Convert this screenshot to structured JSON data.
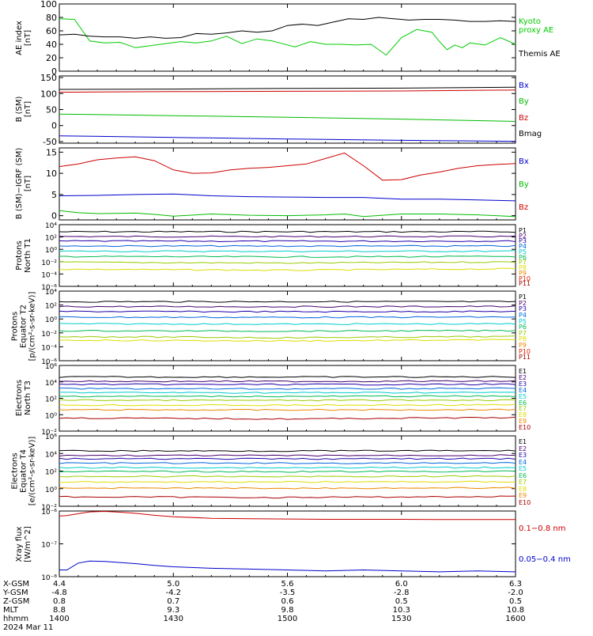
{
  "x_axis": {
    "ticks": [
      "14:00",
      "14:30",
      "15:00",
      "15:30",
      "16:00"
    ],
    "rows": [
      {
        "label": "X-GSM",
        "values": [
          "4.4",
          "5.0",
          "5.6",
          "6.0",
          "6.3"
        ]
      },
      {
        "label": "Y-GSM",
        "values": [
          "-4.8",
          "-4.2",
          "-3.5",
          "-2.8",
          "-2.0"
        ]
      },
      {
        "label": "Z-GSM",
        "values": [
          "0.8",
          "0.7",
          "0.6",
          "0.5",
          "0.5"
        ]
      },
      {
        "label": "MLT",
        "values": [
          "8.8",
          "9.3",
          "9.8",
          "10.3",
          "10.8"
        ]
      },
      {
        "label": "hhmm",
        "values": [
          "1400",
          "1430",
          "1500",
          "1530",
          "1600"
        ]
      }
    ],
    "date": "2024 Mar 11"
  },
  "chart_data": [
    {
      "type": "line",
      "ylabel": "AE index\n[nT]",
      "ylim": [
        0,
        100
      ],
      "yticks": [
        "0",
        "20",
        "40",
        "60",
        "80",
        "100"
      ],
      "x_range": [
        0,
        120
      ],
      "series": [
        {
          "name": "Kyoto\nproxy AE",
          "color": "#00cc00",
          "x": [
            0,
            4,
            8,
            12,
            16,
            20,
            24,
            28,
            32,
            36,
            40,
            44,
            48,
            52,
            56,
            58,
            62,
            66,
            70,
            74,
            78,
            82,
            86,
            90,
            94,
            98,
            100,
            102,
            104,
            106,
            108,
            112,
            116,
            120
          ],
          "values": [
            78,
            77,
            45,
            42,
            43,
            35,
            38,
            41,
            44,
            42,
            45,
            52,
            41,
            48,
            45,
            42,
            36,
            44,
            40,
            40,
            39,
            40,
            24,
            50,
            62,
            58,
            44,
            32,
            39,
            35,
            42,
            39,
            50,
            40
          ]
        },
        {
          "name": "Themis AE",
          "color": "#000000",
          "x": [
            0,
            4,
            8,
            12,
            16,
            20,
            24,
            28,
            32,
            36,
            40,
            44,
            48,
            52,
            56,
            60,
            64,
            68,
            72,
            76,
            80,
            84,
            88,
            92,
            96,
            100,
            104,
            108,
            112,
            116,
            120
          ],
          "values": [
            54,
            55,
            52,
            51,
            51,
            49,
            51,
            49,
            50,
            56,
            55,
            57,
            60,
            58,
            60,
            68,
            70,
            68,
            73,
            78,
            77,
            80,
            78,
            76,
            77,
            77,
            76,
            74,
            74,
            75,
            74
          ]
        }
      ]
    },
    {
      "type": "line",
      "ylabel": "B (SM)\n[nT]",
      "ylim": [
        -55,
        155
      ],
      "yticks": [
        "-50",
        "0",
        "50",
        "100",
        "150"
      ],
      "x_range": [
        0,
        120
      ],
      "series": [
        {
          "name": "Bx",
          "color": "#0000cc",
          "x": [
            0,
            30,
            60,
            90,
            120
          ],
          "values": [
            -32,
            -37,
            -42,
            -46,
            -49
          ]
        },
        {
          "name": "By",
          "color": "#00bb00",
          "x": [
            0,
            30,
            60,
            90,
            120
          ],
          "values": [
            36,
            31,
            26,
            20,
            13
          ]
        },
        {
          "name": "Bz",
          "color": "#cc0000",
          "x": [
            0,
            30,
            60,
            90,
            120
          ],
          "values": [
            104,
            106,
            107,
            108,
            111
          ]
        },
        {
          "name": "Bmag",
          "color": "#000000",
          "x": [
            0,
            30,
            60,
            90,
            120
          ],
          "values": [
            113,
            114,
            116,
            117,
            120
          ]
        }
      ]
    },
    {
      "type": "line",
      "ylabel": "B (SM)−IGRF (SM)\n[nT]",
      "ylim": [
        -1,
        16
      ],
      "yticks": [
        "0",
        "5",
        "10",
        "15"
      ],
      "x_range": [
        0,
        120
      ],
      "series": [
        {
          "name": "Bx",
          "color": "#0000cc",
          "x": [
            0,
            10,
            20,
            30,
            40,
            50,
            60,
            70,
            80,
            90,
            100,
            110,
            120
          ],
          "values": [
            4.7,
            4.8,
            5.0,
            5.1,
            4.7,
            4.5,
            4.4,
            4.3,
            4.3,
            3.9,
            3.9,
            3.7,
            3.5
          ]
        },
        {
          "name": "By",
          "color": "#00bb00",
          "x": [
            0,
            5,
            10,
            20,
            25,
            30,
            40,
            50,
            60,
            70,
            75,
            80,
            90,
            100,
            110,
            120
          ],
          "values": [
            1.2,
            0.7,
            0.5,
            0.6,
            0.3,
            -0.1,
            0.4,
            0.1,
            0.0,
            0.2,
            0.4,
            -0.2,
            0.4,
            0.4,
            0.2,
            -0.2
          ]
        },
        {
          "name": "Bz",
          "color": "#cc0000",
          "x": [
            0,
            5,
            10,
            15,
            20,
            25,
            30,
            35,
            40,
            45,
            50,
            55,
            60,
            65,
            70,
            75,
            80,
            85,
            90,
            95,
            100,
            105,
            110,
            115,
            120
          ],
          "values": [
            11.6,
            12.2,
            13.2,
            13.6,
            13.9,
            13.0,
            10.8,
            10.0,
            10.1,
            10.8,
            11.2,
            11.4,
            11.8,
            12.2,
            13.5,
            14.8,
            11.8,
            8.4,
            8.5,
            9.6,
            10.3,
            11.2,
            11.8,
            12.1,
            12.3
          ]
        }
      ]
    },
    {
      "type": "line",
      "ylabel": "Protons\nNorth T1",
      "y_scale": "log",
      "ylim": [
        1e-06,
        10000.0
      ],
      "yticks": [
        "10⁻⁶",
        "10⁻⁴",
        "10⁻²",
        "10⁰",
        "10²",
        "10⁴"
      ],
      "x_range": [
        0,
        120
      ],
      "series": [
        {
          "name": "P1",
          "color": "#000000",
          "values": [
            700,
            720,
            710
          ]
        },
        {
          "name": "P2",
          "color": "#4a0070",
          "values": [
            120,
            118,
            121
          ]
        },
        {
          "name": "P3",
          "color": "#2200aa",
          "values": [
            22,
            21,
            22
          ]
        },
        {
          "name": "P4",
          "color": "#0066dd",
          "values": [
            3.5,
            3.3,
            3.4
          ]
        },
        {
          "name": "P5",
          "color": "#00cccc",
          "values": [
            0.5,
            0.48,
            0.5
          ]
        },
        {
          "name": "P6",
          "color": "#00bb55",
          "values": [
            0.07,
            0.06,
            0.07
          ]
        },
        {
          "name": "P7",
          "color": "#99cc00",
          "values": [
            0.008,
            0.006,
            0.009
          ]
        },
        {
          "name": "P8",
          "color": "#dddd00",
          "values": [
            0.0006,
            0.0004,
            0.0007
          ]
        },
        {
          "name": "P9",
          "color": "#ee8800",
          "values": []
        },
        {
          "name": "P10",
          "color": "#dd2200",
          "values": []
        },
        {
          "name": "P11",
          "color": "#aa0000",
          "values": []
        }
      ]
    },
    {
      "type": "line",
      "ylabel": "Protons\nEquator T2\n[p/(cm²-s-sr-keV)]",
      "y_scale": "log",
      "ylim": [
        1e-06,
        10000.0
      ],
      "yticks": [
        "10⁻⁶",
        "10⁻⁴",
        "10⁻²",
        "10⁰",
        "10²",
        "10⁴"
      ],
      "x_range": [
        0,
        120
      ],
      "series": [
        {
          "name": "P1",
          "color": "#000000",
          "values": [
            300,
            310,
            300
          ]
        },
        {
          "name": "P2",
          "color": "#4a0070",
          "values": [
            60,
            58,
            62
          ]
        },
        {
          "name": "P3",
          "color": "#2200aa",
          "values": [
            12,
            11,
            12
          ]
        },
        {
          "name": "P4",
          "color": "#0066dd",
          "values": [
            1.8,
            1.7,
            1.9
          ]
        },
        {
          "name": "P5",
          "color": "#00cccc",
          "values": [
            0.2,
            0.18,
            0.2
          ]
        },
        {
          "name": "P6",
          "color": "#00bb55",
          "values": [
            0.02,
            0.018,
            0.021
          ]
        },
        {
          "name": "P7",
          "color": "#99cc00",
          "values": [
            0.003,
            0.002,
            0.003
          ]
        },
        {
          "name": "P8",
          "color": "#dddd00",
          "values": [
            0.0009,
            0.0007,
            0.001
          ]
        },
        {
          "name": "P9",
          "color": "#ee8800",
          "values": []
        },
        {
          "name": "P10",
          "color": "#dd2200",
          "values": []
        },
        {
          "name": "P11",
          "color": "#aa0000",
          "values": []
        }
      ]
    },
    {
      "type": "line",
      "ylabel": "Electrons\nNorth T3",
      "y_scale": "log",
      "ylim": [
        0.01,
        1000000.0
      ],
      "yticks": [
        "10⁻²",
        "10⁰",
        "10²",
        "10⁴",
        "10⁶"
      ],
      "x_range": [
        0,
        120
      ],
      "series": [
        {
          "name": "E1",
          "color": "#000000",
          "values": [
            40000,
            39000,
            41000
          ]
        },
        {
          "name": "E2",
          "color": "#4a0070",
          "values": [
            12000,
            11500,
            12500
          ]
        },
        {
          "name": "E3",
          "color": "#2200aa",
          "values": [
            5000,
            4800,
            5100
          ]
        },
        {
          "name": "E4",
          "color": "#0066dd",
          "values": [
            1500,
            1400,
            1600
          ]
        },
        {
          "name": "E5",
          "color": "#00cccc",
          "values": [
            500,
            480,
            510
          ]
        },
        {
          "name": "E6",
          "color": "#00bb55",
          "values": [
            180,
            170,
            185
          ]
        },
        {
          "name": "E7",
          "color": "#99cc00",
          "values": [
            60,
            55,
            62
          ]
        },
        {
          "name": "E8",
          "color": "#dddd00",
          "values": [
            15,
            14,
            16
          ]
        },
        {
          "name": "E9",
          "color": "#ee8800",
          "values": [
            4,
            3.8,
            4.2
          ]
        },
        {
          "name": "E10",
          "color": "#aa0000",
          "values": [
            0.4,
            0.3,
            0.45
          ]
        }
      ]
    },
    {
      "type": "line",
      "ylabel": "Electrons\nEquator T4\n[e/(cm²-s-sr-keV)]",
      "y_scale": "log",
      "ylim": [
        0.01,
        1000000.0
      ],
      "yticks": [
        "10⁻²",
        "10⁰",
        "10²",
        "10⁴",
        "10⁶"
      ],
      "x_range": [
        0,
        120
      ],
      "series": [
        {
          "name": "E1",
          "color": "#000000",
          "values": [
            20000,
            19500,
            20500
          ]
        },
        {
          "name": "E2",
          "color": "#4a0070",
          "values": [
            6000,
            5800,
            6200
          ]
        },
        {
          "name": "E3",
          "color": "#2200aa",
          "values": [
            2500,
            2400,
            2600
          ]
        },
        {
          "name": "E4",
          "color": "#0066dd",
          "values": [
            800,
            780,
            820
          ]
        },
        {
          "name": "E5",
          "color": "#00cccc",
          "values": [
            250,
            240,
            260
          ]
        },
        {
          "name": "E6",
          "color": "#00bb55",
          "values": [
            90,
            85,
            92
          ]
        },
        {
          "name": "E7",
          "color": "#99cc00",
          "values": [
            25,
            24,
            26
          ]
        },
        {
          "name": "E8",
          "color": "#dddd00",
          "values": [
            6,
            5.8,
            6.2
          ]
        },
        {
          "name": "E9",
          "color": "#ee8800",
          "values": [
            1.2,
            1.1,
            1.25
          ]
        },
        {
          "name": "E10",
          "color": "#aa0000",
          "values": [
            0.12,
            0.1,
            0.13
          ]
        }
      ]
    },
    {
      "type": "line",
      "ylabel": "Xray flux\n[W/m^2]",
      "y_scale": "log",
      "ylim": [
        1e-08,
        1e-06
      ],
      "yticks": [
        "10⁻⁸",
        "10⁻⁷",
        "10⁻⁶"
      ],
      "x_range": [
        0,
        120
      ],
      "series": [
        {
          "name": "0.1−0.8 nm",
          "color": "#cc0000",
          "x": [
            0,
            2,
            5,
            8,
            12,
            16,
            20,
            25,
            30,
            40,
            50,
            60,
            70,
            80,
            90,
            100,
            110,
            120
          ],
          "values": [
            7e-07,
            7.3e-07,
            8.3e-07,
            9.4e-07,
            9.7e-07,
            9.2e-07,
            8.5e-07,
            7.4e-07,
            6.7e-07,
            6e-07,
            5.8e-07,
            5.7e-07,
            5.6e-07,
            5.6e-07,
            5.6e-07,
            5.5e-07,
            5.5e-07,
            5.5e-07
          ]
        },
        {
          "name": "0.05−0.4 nm",
          "color": "#0000cc",
          "x": [
            0,
            2,
            5,
            8,
            12,
            16,
            20,
            25,
            30,
            40,
            50,
            60,
            70,
            80,
            90,
            100,
            110,
            120
          ],
          "values": [
            1.6e-08,
            1.6e-08,
            2.6e-08,
            3e-08,
            2.9e-08,
            2.7e-08,
            2.5e-08,
            2.2e-08,
            2e-08,
            1.8e-08,
            1.7e-08,
            1.6e-08,
            1.5e-08,
            1.6e-08,
            1.5e-08,
            1.4e-08,
            1.5e-08,
            1.4e-08
          ]
        }
      ]
    }
  ]
}
